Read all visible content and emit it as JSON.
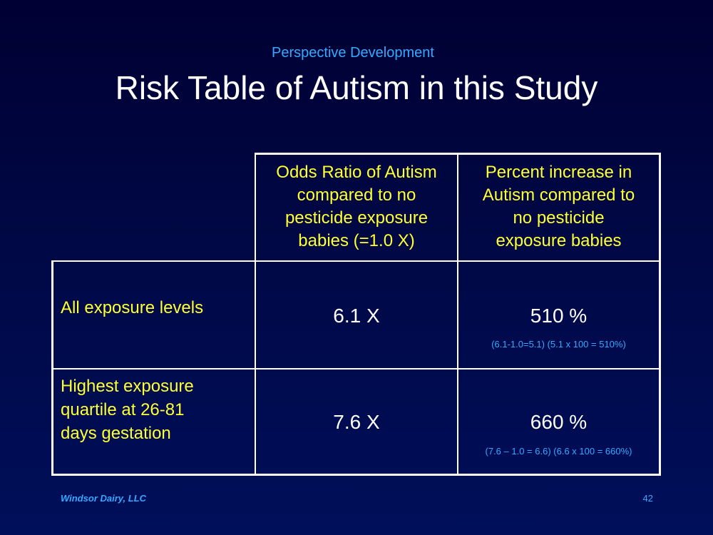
{
  "slide": {
    "subtitle": "Perspective Development",
    "title": "Risk Table of Autism in this Study"
  },
  "table": {
    "headers": [
      "Odds Ratio of Autism compared to no pesticide exposure babies (=1.0 X)",
      "Percent increase in Autism compared to no pesticide exposure babies"
    ],
    "header_lines": [
      [
        "Odds Ratio of Autism",
        "compared to no",
        "pesticide exposure",
        "babies (=1.0 X)"
      ],
      [
        "Percent increase in",
        "Autism compared to",
        "no pesticide",
        "exposure babies"
      ]
    ],
    "rows": [
      {
        "label_lines": [
          "All exposure levels"
        ],
        "odds_ratio": "6.1 X",
        "percent": "510 %",
        "calc": "(6.1-1.0=5.1)  (5.1 x 100 = 510%)"
      },
      {
        "label_lines": [
          "Highest exposure",
          "quartile at 26-81",
          "days gestation"
        ],
        "odds_ratio": "7.6 X",
        "percent": "660 %",
        "calc": "(7.6 – 1.0 = 6.6)  (6.6 x 100 = 660%)"
      }
    ]
  },
  "footer": {
    "company": "Windsor Dairy, LLC",
    "page_number": "42"
  },
  "colors": {
    "accent_blue": "#33aaff",
    "highlight_yellow": "#ffff33",
    "text_white": "#ffffff"
  }
}
